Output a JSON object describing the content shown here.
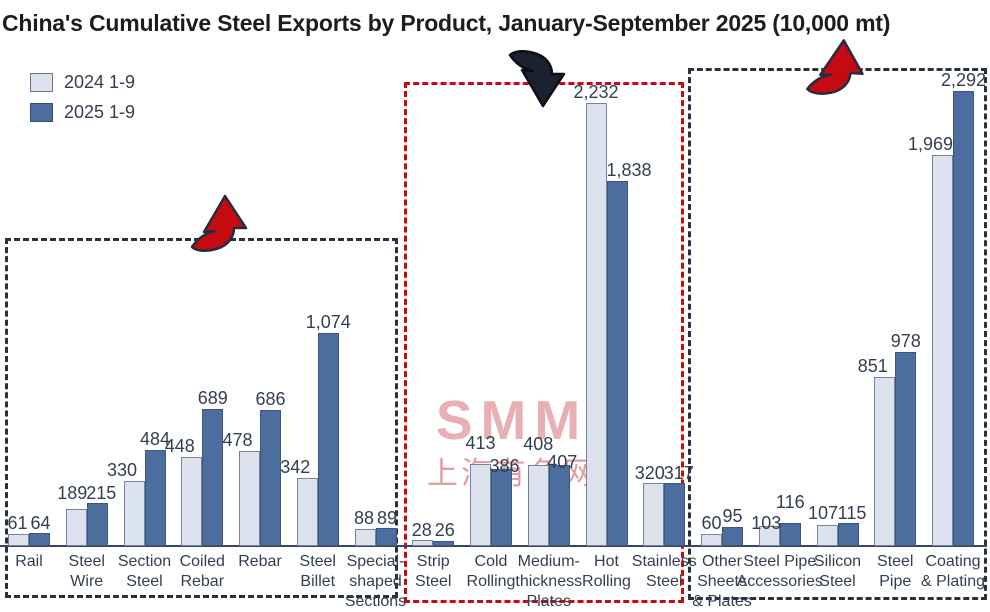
{
  "title": "China's Cumulative Steel Exports by Product, January-September 2025 (10,000 mt)",
  "watermark": {
    "line1": "SMM",
    "line2": "上海有色网"
  },
  "colors": {
    "bar_2024": "#dce3ef",
    "bar_2025": "#4c6e9e",
    "text": "#333f50",
    "axis": "#39455a",
    "dark_box_dash": "#27313f",
    "red_box_dash": "#c9080f",
    "red_arrow": "#c50a11",
    "black_arrow": "#19222e"
  },
  "chart_data": {
    "type": "bar",
    "title": "China's Cumulative Steel Exports by Product, January-September 2025 (10,000 mt)",
    "unit": "10,000 mt",
    "legend_position": "top-left",
    "grid": false,
    "ylim": [
      0,
      2350
    ],
    "categories": [
      "Rail",
      "Steel Wire",
      "Section Steel",
      "Coiled Rebar",
      "Rebar",
      "Steel Billet",
      "Special-shaped Sections",
      "Strip Steel",
      "Cold Rolling",
      "Medium-thickness Plates",
      "Hot Rolling",
      "Stainless Steel",
      "Other Sheets & Plates",
      "Steel Pipe Accessories",
      "Silicon Steel",
      "Steel Pipe",
      "Coating & Plating"
    ],
    "series": [
      {
        "name": "2024 1-9",
        "color": "#dce3ef",
        "values": [
          61,
          189,
          330,
          448,
          478,
          342,
          88,
          28,
          413,
          408,
          2232,
          320,
          60,
          103,
          107,
          851,
          1969
        ]
      },
      {
        "name": "2025 1-9",
        "color": "#4c6e9e",
        "values": [
          64,
          215,
          484,
          689,
          686,
          1074,
          89,
          26,
          386,
          407,
          1838,
          317,
          95,
          116,
          115,
          978,
          2292
        ]
      }
    ],
    "category_label_lines": [
      [
        "Rail"
      ],
      [
        "Steel",
        "Wire"
      ],
      [
        "Section",
        "Steel"
      ],
      [
        "Coiled",
        "Rebar"
      ],
      [
        "Rebar"
      ],
      [
        "Steel",
        "Billet"
      ],
      [
        "Special-",
        "shaped",
        "Sections"
      ],
      [
        "Strip",
        "Steel"
      ],
      [
        "Cold",
        "Rolling"
      ],
      [
        "Medium-",
        "thickness",
        "Plates"
      ],
      [
        "Hot",
        "Rolling"
      ],
      [
        "Stainless",
        "Steel"
      ],
      [
        "Other",
        "Sheets",
        "& Plates"
      ],
      [
        "Steel Pipe",
        "Accessories"
      ],
      [
        "Silicon",
        "Steel"
      ],
      [
        "Steel",
        "Pipe"
      ],
      [
        "Coating",
        "& Plating"
      ]
    ],
    "label_layout": [
      "row",
      "row",
      "separate",
      "separate",
      "separate",
      "separate",
      "row",
      "row",
      "stagger",
      "stagger",
      "separate",
      "row",
      "separate",
      "stagger",
      "row",
      "separate",
      "separate"
    ],
    "annotations": {
      "boxes": [
        {
          "style": "dark-dashed",
          "from_category": "Rail",
          "to_category": "Special-shaped Sections"
        },
        {
          "style": "red-dashed",
          "from_category": "Strip Steel",
          "to_category": "Stainless Steel"
        },
        {
          "style": "dark-dashed",
          "from_category": "Other Sheets & Plates",
          "to_category": "Coating & Plating"
        }
      ],
      "arrows": [
        {
          "shape": "curved-up",
          "color": "red",
          "location": "above-left-group"
        },
        {
          "shape": "curved-down",
          "color": "black",
          "location": "above-middle-group"
        },
        {
          "shape": "curved-up",
          "color": "red",
          "location": "above-right-group"
        }
      ]
    }
  }
}
